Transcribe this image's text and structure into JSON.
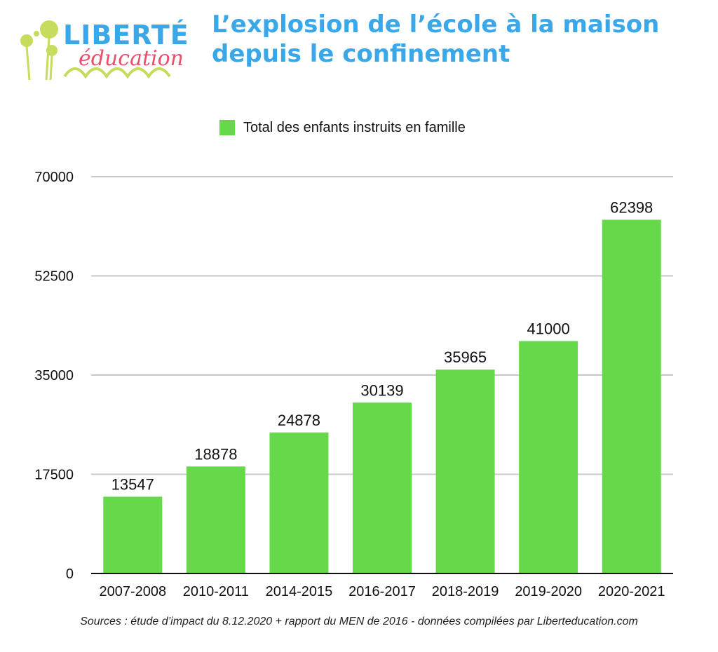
{
  "logo": {
    "word": "LIBERTÉ",
    "sub": "éducation"
  },
  "header": {
    "title_line1": "L’explosion de l’école à la maison",
    "title_line2": "depuis le confinement"
  },
  "footer": {
    "source": "Sources : étude d’impact du 8.12.2020 + rapport du MEN de 2016 - données compilées par Liberteducation.com"
  },
  "chart_data": {
    "type": "bar",
    "title": "L’explosion de l’école à la maison depuis le confinement",
    "categories": [
      "2007-2008",
      "2010-2011",
      "2014-2015",
      "2016-2017",
      "2018-2019",
      "2019-2020",
      "2020-2021"
    ],
    "series": [
      {
        "name": "Total des enfants instruits en famille",
        "values": [
          13547,
          18878,
          24878,
          30139,
          35965,
          41000,
          62398
        ],
        "color": "#66d94a"
      }
    ],
    "yticks": [
      0,
      17500,
      35000,
      52500,
      70000
    ],
    "ylim": [
      0,
      70000
    ],
    "grid": true,
    "legend": "top-center",
    "colors": {
      "bar": "#66d94a",
      "grid": "#c8c8c8",
      "title": "#3aa8e8"
    }
  }
}
